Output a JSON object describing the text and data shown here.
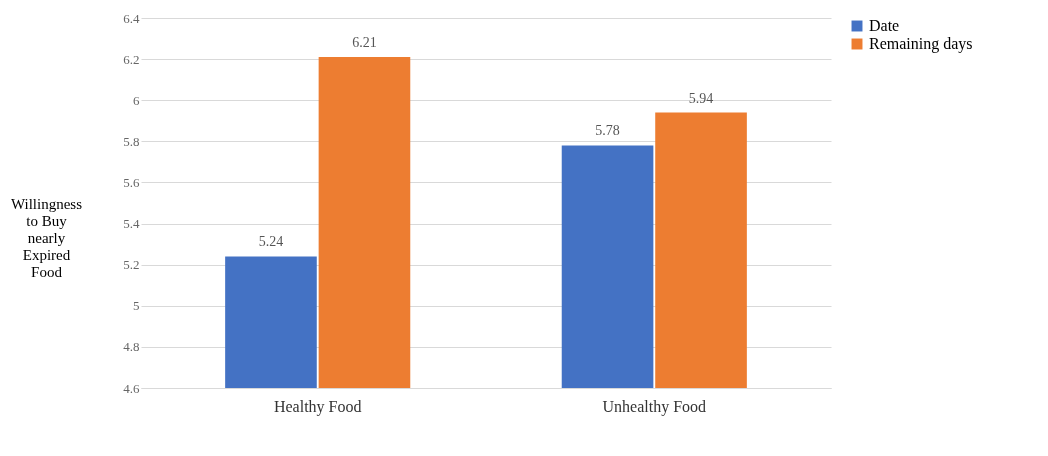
{
  "chart_data": {
    "type": "bar",
    "ylabel": "Willingness to Buy nearly Expired Food",
    "categories": [
      "Healthy Food",
      "Unhealthy Food"
    ],
    "series": [
      {
        "name": "Date",
        "color": "#4472c4",
        "values": [
          5.24,
          5.78
        ]
      },
      {
        "name": "Remaining days",
        "color": "#ed7d31",
        "values": [
          6.21,
          5.94
        ]
      }
    ],
    "ylim": [
      4.6,
      6.4
    ],
    "yticks": [
      4.6,
      4.8,
      5,
      5.2,
      5.4,
      5.6,
      5.8,
      6,
      6.2,
      6.4
    ],
    "grid": "y",
    "legend": "right",
    "data_labels": true
  }
}
